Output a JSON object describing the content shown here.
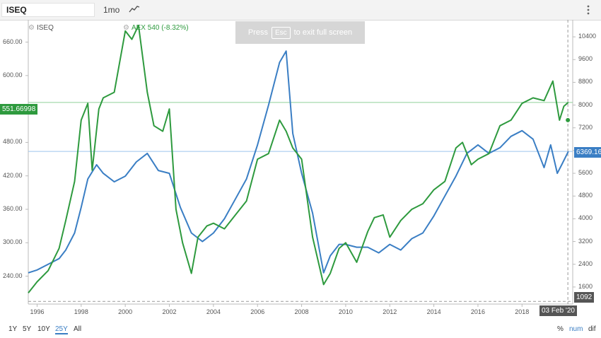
{
  "toolbar": {
    "symbol_value": "ISEQ",
    "interval_label": "1mo",
    "charttype_icon": "line-chart-icon",
    "menu_icon": "kebab-menu-icon"
  },
  "legend": {
    "primary_label": "ISEQ",
    "compare_label": "AEX",
    "compare_value": "540 (-8.32%)"
  },
  "fullscreen_banner": {
    "press": "Press",
    "key": "Esc",
    "rest": "to exit full screen"
  },
  "axes": {
    "left_ticks": [
      "660.00",
      "600.00",
      "540.00",
      "480.00",
      "420.00",
      "360.00",
      "300.00",
      "240.00"
    ],
    "right_ticks": [
      "10400",
      "9600",
      "8800",
      "8000",
      "7200",
      "6400",
      "5600",
      "4800",
      "4000",
      "3200",
      "2400",
      "1600"
    ],
    "x_ticks": [
      "1996",
      "1998",
      "2000",
      "2002",
      "2004",
      "2006",
      "2008",
      "2010",
      "2012",
      "2014",
      "2016",
      "2018"
    ]
  },
  "tags": {
    "aex_current": "551.66998",
    "iseq_current": "6369.16",
    "crosshair_value": "1092",
    "crosshair_date": "03 Feb '20"
  },
  "ranges": [
    "1Y",
    "5Y",
    "10Y",
    "25Y",
    "All"
  ],
  "active_range": "25Y",
  "modes": [
    "%",
    "num",
    "dif"
  ],
  "active_mode": "num",
  "colors": {
    "iseq": "#3a7ec4",
    "aex": "#2e9a3e"
  },
  "chart_data": {
    "type": "line",
    "xlim": [
      1995.6,
      2020.3
    ],
    "ylim_left": [
      190,
      700
    ],
    "ylim_right": [
      1000,
      11000
    ],
    "series": [
      {
        "name": "ISEQ",
        "axis": "right",
        "x": [
          1995.6,
          1996.0,
          1996.5,
          1997.0,
          1997.3,
          1997.7,
          1998.0,
          1998.3,
          1998.7,
          1999.0,
          1999.5,
          2000.0,
          2000.5,
          2001.0,
          2001.5,
          2002.0,
          2002.5,
          2003.0,
          2003.5,
          2004.0,
          2004.5,
          2005.0,
          2005.5,
          2006.0,
          2006.5,
          2007.0,
          2007.3,
          2007.6,
          2008.0,
          2008.5,
          2009.0,
          2009.3,
          2009.7,
          2010.0,
          2010.5,
          2011.0,
          2011.5,
          2012.0,
          2012.5,
          2013.0,
          2013.5,
          2014.0,
          2014.5,
          2015.0,
          2015.5,
          2016.0,
          2016.5,
          2017.0,
          2017.5,
          2018.0,
          2018.5,
          2019.0,
          2019.3,
          2019.6,
          2019.8,
          2020.1
        ],
        "values": [
          2100,
          2200,
          2400,
          2600,
          2900,
          3500,
          4400,
          5400,
          5900,
          5600,
          5300,
          5500,
          6000,
          6300,
          5700,
          5600,
          4400,
          3500,
          3200,
          3500,
          4000,
          4700,
          5400,
          6600,
          8000,
          9500,
          9900,
          7000,
          5600,
          4200,
          2100,
          2700,
          3100,
          3100,
          3000,
          3000,
          2800,
          3100,
          2900,
          3300,
          3500,
          4100,
          4800,
          5500,
          6300,
          6600,
          6300,
          6500,
          6900,
          7100,
          6800,
          5800,
          6600,
          5600,
          5900,
          6369
        ]
      },
      {
        "name": "AEX",
        "axis": "left",
        "x": [
          1995.6,
          1996.0,
          1996.5,
          1997.0,
          1997.3,
          1997.7,
          1998.0,
          1998.3,
          1998.5,
          1998.8,
          1999.0,
          1999.5,
          2000.0,
          2000.3,
          2000.6,
          2001.0,
          2001.3,
          2001.7,
          2002.0,
          2002.3,
          2002.6,
          2003.0,
          2003.3,
          2003.7,
          2004.0,
          2004.5,
          2005.0,
          2005.5,
          2006.0,
          2006.5,
          2007.0,
          2007.3,
          2007.6,
          2008.0,
          2008.5,
          2009.0,
          2009.3,
          2009.7,
          2010.0,
          2010.5,
          2011.0,
          2011.3,
          2011.7,
          2012.0,
          2012.5,
          2013.0,
          2013.5,
          2014.0,
          2014.5,
          2015.0,
          2015.3,
          2015.7,
          2016.0,
          2016.5,
          2017.0,
          2017.5,
          2018.0,
          2018.5,
          2019.0,
          2019.4,
          2019.7,
          2019.9,
          2020.1
        ],
        "values": [
          210,
          230,
          250,
          290,
          340,
          410,
          520,
          550,
          430,
          540,
          560,
          570,
          680,
          665,
          690,
          570,
          510,
          500,
          540,
          360,
          300,
          245,
          310,
          330,
          335,
          325,
          350,
          375,
          450,
          460,
          520,
          500,
          470,
          450,
          310,
          225,
          245,
          290,
          300,
          265,
          320,
          345,
          350,
          310,
          340,
          360,
          370,
          395,
          410,
          470,
          480,
          440,
          450,
          460,
          510,
          520,
          550,
          560,
          555,
          590,
          520,
          545,
          552
        ]
      }
    ]
  }
}
